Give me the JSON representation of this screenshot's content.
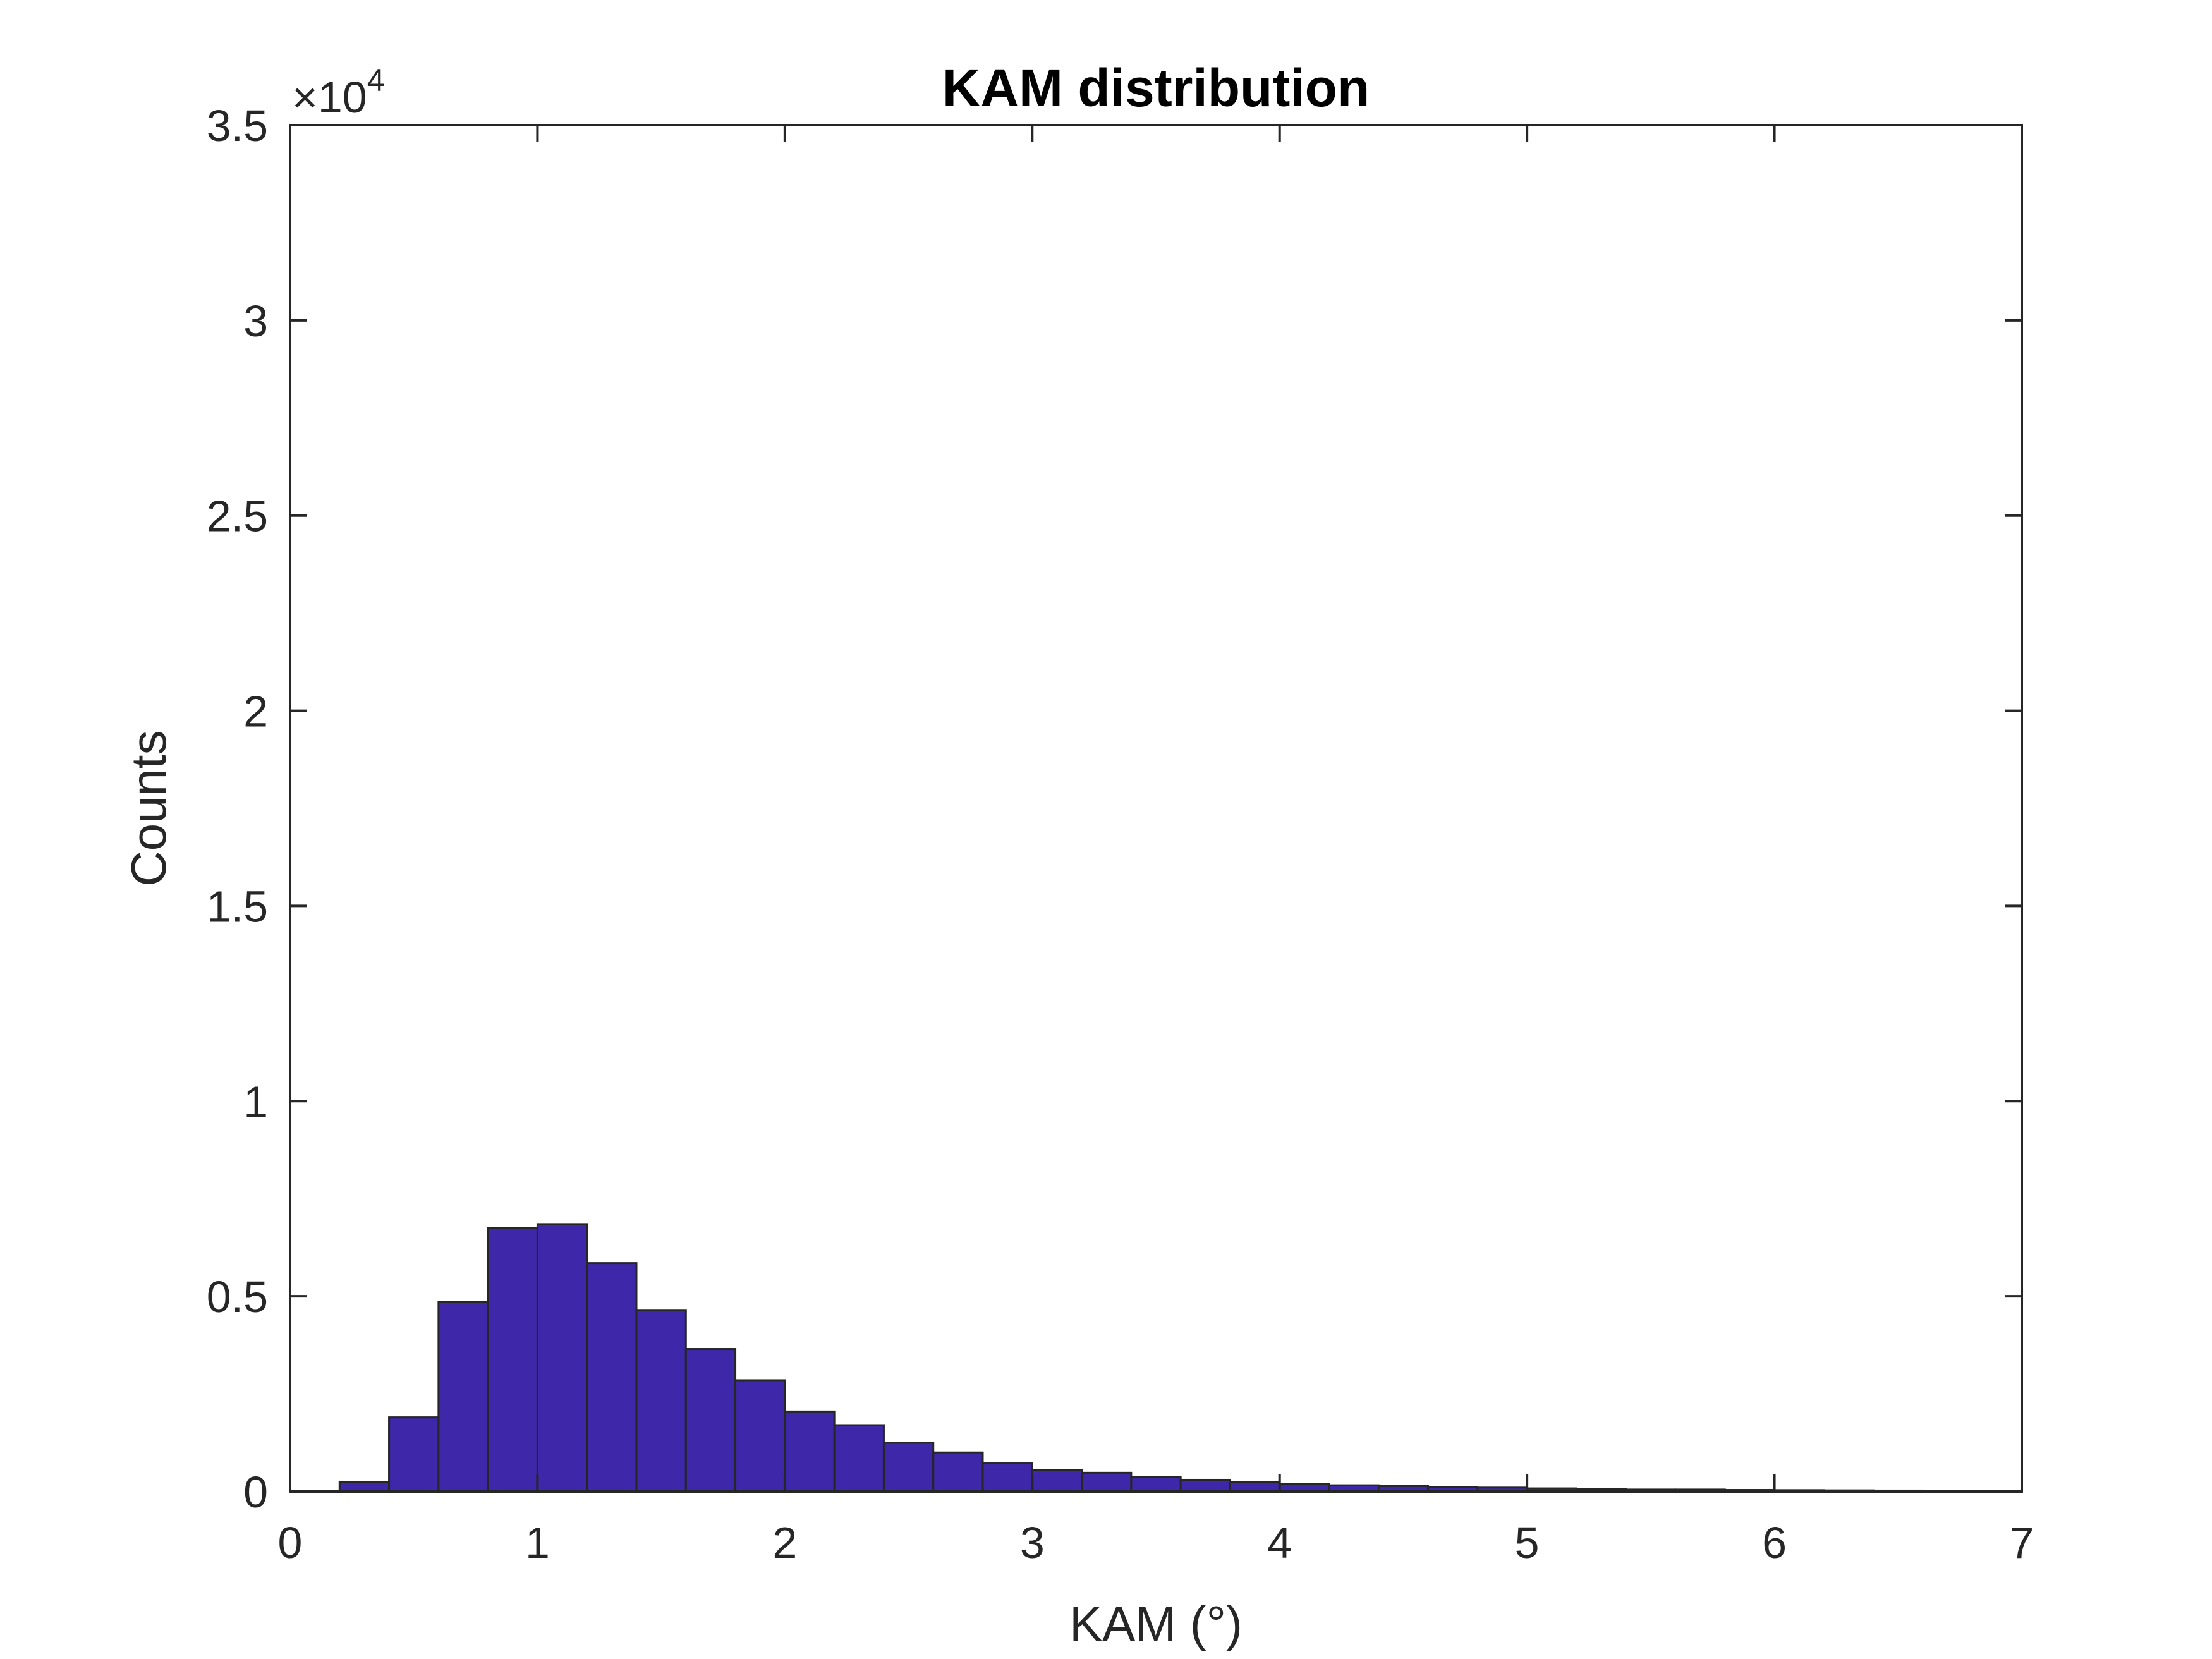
{
  "chart_data": {
    "type": "bar",
    "title": "KAM distribution",
    "xlabel": "KAM (°)",
    "ylabel": "Counts",
    "xlim": [
      0,
      7
    ],
    "ylim": [
      0,
      35000
    ],
    "xticks": [
      "0",
      "1",
      "2",
      "3",
      "4",
      "5",
      "6",
      "7"
    ],
    "yticks": [
      "0",
      "0.5",
      "1",
      "1.5",
      "2",
      "2.5",
      "3",
      "3.5"
    ],
    "y_exponent_label": "×10",
    "y_exponent_power": "4",
    "grid": false,
    "bin_width": 0.2,
    "bins": [
      {
        "x0": 0.2,
        "value": 250
      },
      {
        "x0": 0.4,
        "value": 1900
      },
      {
        "x0": 0.6,
        "value": 4850
      },
      {
        "x0": 0.8,
        "value": 6750
      },
      {
        "x0": 1.0,
        "value": 6850
      },
      {
        "x0": 1.2,
        "value": 5850
      },
      {
        "x0": 1.4,
        "value": 4650
      },
      {
        "x0": 1.6,
        "value": 3650
      },
      {
        "x0": 1.8,
        "value": 2850
      },
      {
        "x0": 2.0,
        "value": 2050
      },
      {
        "x0": 2.2,
        "value": 1700
      },
      {
        "x0": 2.4,
        "value": 1250
      },
      {
        "x0": 2.6,
        "value": 1000
      },
      {
        "x0": 2.8,
        "value": 720
      },
      {
        "x0": 3.0,
        "value": 550
      },
      {
        "x0": 3.2,
        "value": 480
      },
      {
        "x0": 3.4,
        "value": 380
      },
      {
        "x0": 3.6,
        "value": 300
      },
      {
        "x0": 3.8,
        "value": 240
      },
      {
        "x0": 4.0,
        "value": 200
      },
      {
        "x0": 4.2,
        "value": 160
      },
      {
        "x0": 4.4,
        "value": 140
      },
      {
        "x0": 4.6,
        "value": 110
      },
      {
        "x0": 4.8,
        "value": 100
      },
      {
        "x0": 5.0,
        "value": 80
      },
      {
        "x0": 5.2,
        "value": 60
      },
      {
        "x0": 5.4,
        "value": 50
      },
      {
        "x0": 5.6,
        "value": 50
      },
      {
        "x0": 5.8,
        "value": 40
      },
      {
        "x0": 6.0,
        "value": 35
      },
      {
        "x0": 6.2,
        "value": 30
      },
      {
        "x0": 6.4,
        "value": 25
      },
      {
        "x0": 6.6,
        "value": 20
      },
      {
        "x0": 6.8,
        "value": 20
      }
    ],
    "colors": {
      "bar_fill": "#3e27a8",
      "bar_edge": "#262626",
      "axis": "#262626"
    }
  }
}
